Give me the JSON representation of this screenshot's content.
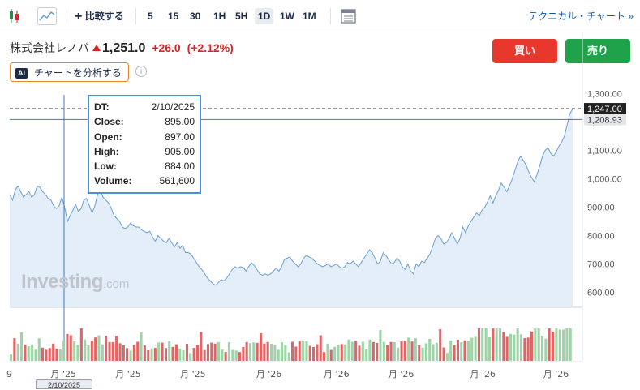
{
  "toolbar": {
    "compare_label": "比較する",
    "intervals": [
      "5",
      "15",
      "30",
      "1H",
      "5H",
      "1D",
      "1W",
      "1M"
    ],
    "active_interval": "1D",
    "technical_link": "テクニカル・チャート »",
    "icons": [
      "candlestick-icon",
      "area-chart-icon",
      "plus-icon",
      "table-icon"
    ]
  },
  "header": {
    "stock_name": "株式会社レノバ",
    "price": "1,251.0",
    "change": "+26.0",
    "change_pct": "(+2.12%)",
    "buy_label": "買い",
    "sell_label": "売り",
    "ai_badge": "AI",
    "ai_label": "チャートを分析する",
    "info_symbol": "i"
  },
  "tooltip": {
    "dt_label": "DT:",
    "dt": "2/10/2025",
    "close_label": "Close:",
    "close": "895.00",
    "open_label": "Open:",
    "open": "897.00",
    "high_label": "High:",
    "high": "905.00",
    "low_label": "Low:",
    "low": "884.00",
    "volume_label": "Volume:",
    "volume": "561,600"
  },
  "crosshair": {
    "date_label": "2/10/2025",
    "price_label": "1,208.93",
    "price_value": 1208.93
  },
  "watermark": {
    "brand": "Investing",
    "suffix": ".com"
  },
  "colors": {
    "accent": "#1256a0",
    "up": "#d22222",
    "buy": "#e8382e",
    "sell": "#1fa34a",
    "area_line": "#6a9fd4",
    "area_fill": "#e4eef8",
    "vol_up": "#9fd4a8",
    "vol_down": "#e06666"
  },
  "chart_data": {
    "type": "area",
    "y_ticks": [
      "1,300.00",
      "1,200.00",
      "1,100.00",
      "1,000.00",
      "900.00",
      "800.00",
      "700.00",
      "600.00"
    ],
    "y_tick_values": [
      1300,
      1200,
      1100,
      1000,
      900,
      800,
      700,
      600
    ],
    "ylim": [
      550,
      1310
    ],
    "last_price_label": "1,247.00",
    "last_price": 1247,
    "x_labels": [
      "9",
      "月 '25",
      "月 '25",
      "月 '25",
      "月 '26",
      "月 '26",
      "月 '26",
      "月 '26",
      "月 '26"
    ],
    "x_label_positions": [
      0,
      0.09,
      0.205,
      0.32,
      0.455,
      0.575,
      0.69,
      0.835,
      0.965
    ],
    "series": [
      {
        "values": [
          945,
          925,
          960,
          975,
          955,
          935,
          945,
          955,
          935,
          945,
          975,
          970,
          955,
          945,
          930,
          925,
          905,
          895,
          905,
          935,
          900,
          850,
          870,
          890,
          910,
          885,
          895,
          925,
          930,
          905,
          880,
          905,
          945,
          960,
          935,
          925,
          915,
          895,
          870,
          860,
          850,
          830,
          825,
          830,
          845,
          835,
          830,
          830,
          820,
          815,
          810,
          815,
          795,
          780,
          800,
          790,
          780,
          775,
          790,
          775,
          760,
          775,
          755,
          765,
          740,
          740,
          735,
          720,
          705,
          690,
          680,
          665,
          650,
          640,
          630,
          625,
          635,
          645,
          640,
          650,
          665,
          680,
          690,
          685,
          690,
          688,
          675,
          690,
          705,
          695,
          680,
          665,
          660,
          665,
          660,
          665,
          675,
          685,
          675,
          690,
          715,
          720,
          725,
          710,
          700,
          690,
          700,
          720,
          730,
          725,
          720,
          710,
          700,
          695,
          690,
          695,
          700,
          690,
          695,
          700,
          690,
          685,
          690,
          705,
          700,
          710,
          700,
          690,
          705,
          720,
          735,
          750,
          740,
          720,
          700,
          710,
          740,
          730,
          715,
          700,
          705,
          720,
          710,
          690,
          680,
          700,
          675,
          665,
          700,
          690,
          710,
          705,
          720,
          735,
          760,
          790,
          800,
          790,
          770,
          775,
          790,
          810,
          790,
          770,
          790,
          830,
          810,
          835,
          850,
          865,
          880,
          870,
          890,
          900,
          920,
          940,
          915,
          940,
          960,
          985,
          970,
          955,
          975,
          1000,
          1030,
          1060,
          1080,
          1065,
          1050,
          1025,
          1005,
          990,
          1015,
          1045,
          1080,
          1100,
          1110,
          1090,
          1080,
          1095,
          1115,
          1130,
          1150,
          1190,
          1230,
          1247
        ]
      }
    ]
  }
}
